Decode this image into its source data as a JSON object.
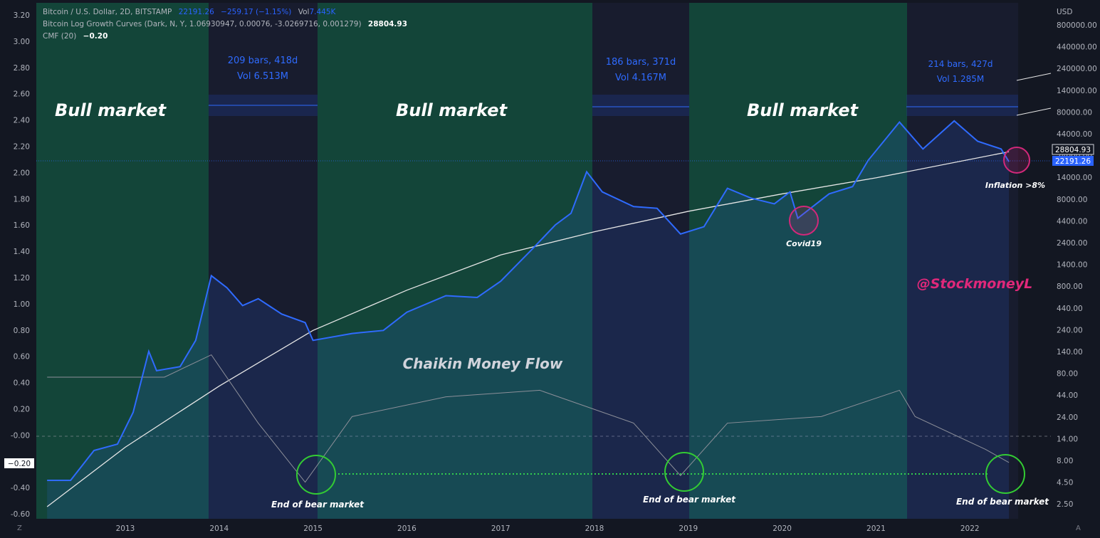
{
  "header": {
    "symbol_line": "Bitcoin / U.S. Dollar, 2D, BITSTAMP",
    "last_price": "22191.26",
    "change": "−259.17 (−1.15%)",
    "vol_label": "Vol",
    "vol_value": "7.445K",
    "indicator_line": "Bitcoin Log Growth Curves (Dark, N, Y, 1.06930947, 0.00076, -3.0269716, 0.001279)",
    "indicator_value": "28804.93",
    "cmf_label": "CMF (20)",
    "cmf_value": "−0.20"
  },
  "corners": {
    "left": "Z",
    "right": "A"
  },
  "colors": {
    "background": "#131722",
    "bull_zone": "#134539",
    "bear_zone": "#181c2e",
    "price_line": "#2f6bff",
    "growth_curve": "#e6e6e6",
    "cmf_line": "#8c8f99",
    "green_circle": "#33cc33",
    "pink_circle": "#d3287a",
    "watermark": "#e0287a"
  },
  "annotations": {
    "bull": [
      "Bull market",
      "Bull market",
      "Bull market"
    ],
    "ranges": [
      {
        "bars": "209 bars, 418d",
        "vol": "Vol 6.513M"
      },
      {
        "bars": "186 bars, 371d",
        "vol": "Vol 4.167M"
      },
      {
        "bars": "214 bars, 427d",
        "vol": "Vol 1.285M"
      }
    ],
    "end_bear": [
      "End of bear market",
      "End of bear market",
      "End of bear market"
    ],
    "covid": "Covid19",
    "inflation": "Inflation >8%",
    "cmf_title": "Chaikin Money Flow",
    "watermark": "@StockmoneyL"
  },
  "chart_data": {
    "type": "line",
    "title": "Bitcoin / U.S. Dollar, 2D, BITSTAMP",
    "currency": "USD",
    "x_ticks": [
      "2013",
      "2014",
      "2015",
      "2016",
      "2017",
      "2018",
      "2019",
      "2020",
      "2021",
      "2022"
    ],
    "price_scale": "log",
    "right_axis_label": "USD",
    "right_ticks": [
      "800000.00",
      "440000.00",
      "240000.00",
      "140000.00",
      "80000.00",
      "44000.00",
      "24000.00",
      "14000.00",
      "8000.00",
      "4400.00",
      "2400.00",
      "1400.00",
      "800.00",
      "440.00",
      "240.00",
      "140.00",
      "80.00",
      "44.00",
      "24.00",
      "14.00",
      "8.00",
      "4.50",
      "2.50"
    ],
    "left_ticks": [
      "3.20",
      "3.00",
      "2.80",
      "2.60",
      "2.40",
      "2.20",
      "2.00",
      "1.80",
      "1.60",
      "1.40",
      "1.20",
      "1.00",
      "0.80",
      "0.60",
      "0.40",
      "0.20",
      "-0.00",
      "-0.20",
      "-0.40",
      "-0.60"
    ],
    "price_labels": {
      "growth_curve": "28804.93",
      "last_price": "22191.26",
      "cmf_current": "−0.20"
    },
    "series": [
      {
        "name": "Bitcoin / U.S. Dollar",
        "x": [
          "2012-03",
          "2012-06",
          "2012-09",
          "2012-12",
          "2013-02",
          "2013-04",
          "2013-05",
          "2013-08",
          "2013-10",
          "2013-12",
          "2014-02",
          "2014-04",
          "2014-06",
          "2014-09",
          "2014-12",
          "2015-01",
          "2015-06",
          "2015-10",
          "2016-01",
          "2016-06",
          "2016-10",
          "2017-01",
          "2017-05",
          "2017-08",
          "2017-10",
          "2017-12",
          "2018-02",
          "2018-06",
          "2018-09",
          "2018-12",
          "2019-03",
          "2019-06",
          "2019-09",
          "2019-12",
          "2020-02",
          "2020-03",
          "2020-07",
          "2020-10",
          "2020-12",
          "2021-04",
          "2021-07",
          "2021-11",
          "2022-02",
          "2022-05",
          "2022-06"
        ],
        "y": [
          5,
          5,
          11,
          13,
          30,
          150,
          90,
          100,
          200,
          1100,
          800,
          500,
          600,
          400,
          320,
          200,
          240,
          260,
          420,
          650,
          620,
          950,
          2200,
          4200,
          5700,
          17000,
          10000,
          6800,
          6500,
          3300,
          4000,
          11000,
          8500,
          7300,
          10000,
          5000,
          9500,
          11500,
          23000,
          63000,
          31000,
          65000,
          38000,
          31000,
          22191
        ]
      },
      {
        "name": "Bitcoin Log Growth Curves",
        "x": [
          "2012-03",
          "2013-01",
          "2014-01",
          "2015-01",
          "2016-01",
          "2017-01",
          "2018-01",
          "2019-01",
          "2020-01",
          "2021-01",
          "2022-06"
        ],
        "y": [
          2.5,
          12,
          60,
          260,
          750,
          1900,
          3500,
          6000,
          9500,
          14500,
          28804.93
        ]
      },
      {
        "name": "CMF (20)",
        "x": [
          "2012-03",
          "2013-06",
          "2013-12",
          "2014-06",
          "2014-12",
          "2015-06",
          "2016-06",
          "2017-06",
          "2018-06",
          "2018-12",
          "2019-06",
          "2020-06",
          "2021-04",
          "2021-06",
          "2022-03",
          "2022-06"
        ],
        "y": [
          0.45,
          0.45,
          0.62,
          0.1,
          -0.35,
          0.15,
          0.3,
          0.35,
          0.1,
          -0.3,
          0.1,
          0.15,
          0.35,
          0.15,
          -0.1,
          -0.2
        ]
      }
    ]
  }
}
